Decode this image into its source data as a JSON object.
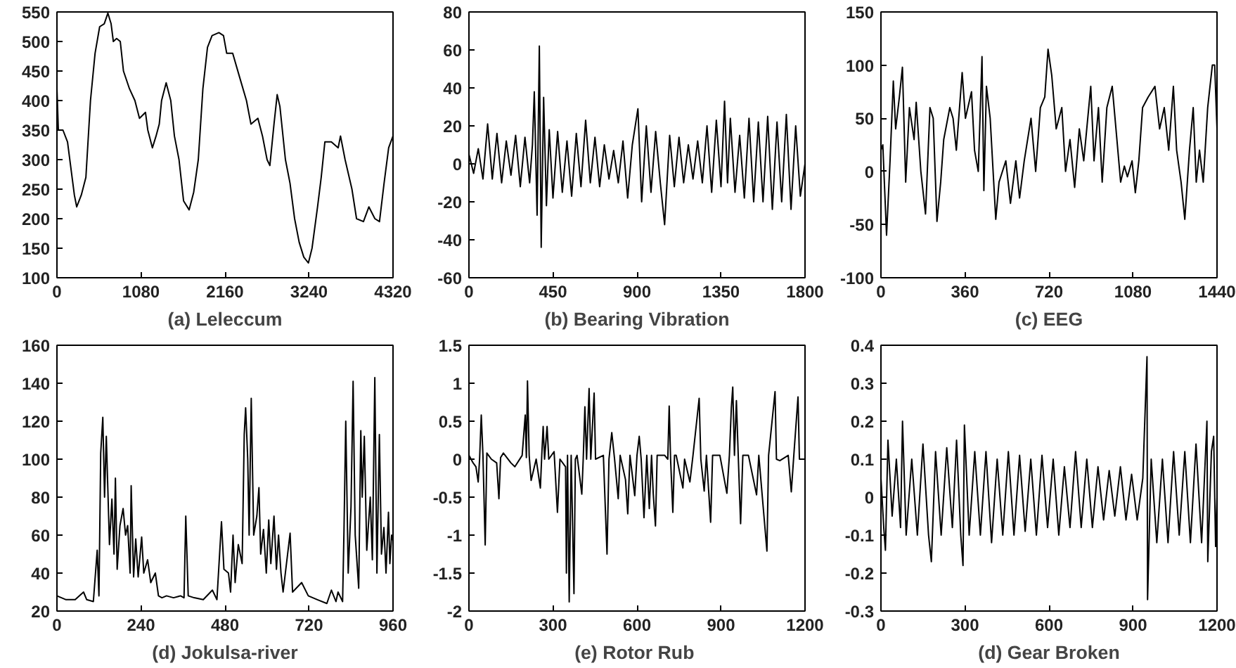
{
  "chart_data": [
    {
      "type": "line",
      "xlabel": "(a) Leleccum",
      "xlim": [
        0,
        4320
      ],
      "xticks": [
        0,
        1080,
        2160,
        3240,
        4320
      ],
      "ylim": [
        100,
        550
      ],
      "yticks": [
        100,
        150,
        200,
        250,
        300,
        350,
        400,
        450,
        500,
        550
      ],
      "series": [
        {
          "color": "#000000",
          "x": [
            0,
            18,
            77,
            136,
            224,
            254,
            313,
            372,
            431,
            490,
            549,
            608,
            655,
            696,
            725,
            767,
            814,
            855,
            932,
            1002,
            1061,
            1138,
            1168,
            1227,
            1274,
            1315,
            1345,
            1404,
            1463,
            1510,
            1569,
            1628,
            1699,
            1758,
            1817,
            1876,
            1935,
            1994,
            2082,
            2141,
            2182,
            2259,
            2347,
            2436,
            2494,
            2583,
            2642,
            2701,
            2737,
            2790,
            2831,
            2866,
            2937,
            2996,
            3055,
            3114,
            3173,
            3232,
            3279,
            3350,
            3397,
            3444,
            3527,
            3615,
            3645,
            3704,
            3792,
            3851,
            3940,
            4010,
            4087,
            4146,
            4205,
            4264,
            4320
          ],
          "values": [
            420,
            350,
            350,
            330,
            240,
            220,
            240,
            270,
            400,
            480,
            525,
            530,
            548,
            530,
            500,
            505,
            500,
            450,
            420,
            400,
            370,
            380,
            350,
            320,
            340,
            360,
            400,
            430,
            400,
            340,
            300,
            230,
            215,
            245,
            300,
            420,
            490,
            510,
            515,
            510,
            480,
            480,
            440,
            400,
            360,
            370,
            340,
            300,
            290,
            360,
            410,
            390,
            300,
            260,
            200,
            160,
            135,
            125,
            150,
            220,
            270,
            330,
            330,
            320,
            340,
            300,
            250,
            200,
            195,
            220,
            200,
            195,
            260,
            320,
            340
          ]
        }
      ]
    },
    {
      "type": "line",
      "xlabel": "(b) Bearing Vibration",
      "xlim": [
        0,
        1800
      ],
      "xticks": [
        0,
        450,
        900,
        1350,
        1800
      ],
      "ylim": [
        -60,
        80
      ],
      "yticks": [
        -60,
        -40,
        -20,
        0,
        20,
        40,
        60,
        80
      ],
      "series": [
        {
          "color": "#000000",
          "x": [
            0,
            25,
            50,
            75,
            100,
            125,
            150,
            175,
            200,
            225,
            250,
            275,
            300,
            325,
            340,
            350,
            365,
            377,
            387,
            400,
            415,
            430,
            450,
            475,
            500,
            525,
            550,
            575,
            600,
            625,
            650,
            675,
            700,
            725,
            750,
            775,
            800,
            825,
            850,
            875,
            905,
            925,
            950,
            975,
            1000,
            1025,
            1048,
            1075,
            1100,
            1125,
            1150,
            1175,
            1200,
            1225,
            1250,
            1275,
            1300,
            1325,
            1350,
            1369,
            1385,
            1400,
            1425,
            1450,
            1475,
            1500,
            1525,
            1550,
            1575,
            1600,
            1625,
            1650,
            1675,
            1700,
            1725,
            1750,
            1775,
            1800
          ],
          "values": [
            5,
            -5,
            8,
            -8,
            21,
            -8,
            16,
            -10,
            12,
            -6,
            15,
            -12,
            14,
            -10,
            10,
            38,
            -27,
            62,
            -44,
            35,
            -22,
            18,
            -18,
            17,
            -15,
            12,
            -17,
            16,
            -12,
            23,
            -10,
            14,
            -12,
            10,
            -8,
            7,
            -10,
            12,
            -18,
            10,
            29,
            -20,
            20,
            -15,
            17,
            -10,
            -32,
            15,
            -12,
            14,
            -10,
            10,
            -8,
            12,
            -10,
            20,
            -15,
            23,
            -12,
            33,
            -10,
            24,
            -15,
            15,
            -18,
            24,
            -20,
            22,
            -20,
            25,
            -24,
            22,
            -20,
            26,
            -24,
            20,
            -17,
            0
          ]
        }
      ]
    },
    {
      "type": "line",
      "xlabel": "(c) EEG",
      "xlim": [
        0,
        1440
      ],
      "xticks": [
        0,
        360,
        720,
        1080,
        1440
      ],
      "ylim": [
        -100,
        150
      ],
      "yticks": [
        -100,
        -50,
        0,
        50,
        100,
        150
      ],
      "series": [
        {
          "color": "#000000",
          "x": [
            0,
            8,
            24,
            39,
            53,
            63,
            79,
            92,
            106,
            122,
            142,
            151,
            171,
            191,
            210,
            224,
            240,
            256,
            269,
            295,
            309,
            323,
            348,
            362,
            388,
            401,
            417,
            433,
            441,
            452,
            468,
            492,
            506,
            535,
            555,
            578,
            594,
            614,
            643,
            663,
            683,
            702,
            716,
            732,
            751,
            775,
            791,
            810,
            830,
            850,
            869,
            899,
            913,
            932,
            948,
            968,
            991,
            1011,
            1027,
            1043,
            1056,
            1076,
            1090,
            1105,
            1121,
            1145,
            1174,
            1194,
            1214,
            1233,
            1253,
            1267,
            1286,
            1302,
            1322,
            1338,
            1351,
            1365,
            1381,
            1400,
            1420,
            1430,
            1440
          ],
          "values": [
            20,
            25,
            -60,
            10,
            85,
            40,
            70,
            98,
            -10,
            60,
            30,
            65,
            0,
            -40,
            60,
            50,
            -47,
            -10,
            30,
            60,
            50,
            20,
            93,
            50,
            75,
            20,
            0,
            108,
            -18,
            80,
            50,
            -45,
            -10,
            10,
            -30,
            10,
            -25,
            10,
            50,
            0,
            60,
            70,
            115,
            90,
            40,
            60,
            0,
            30,
            -15,
            40,
            10,
            80,
            10,
            60,
            -10,
            60,
            80,
            30,
            -10,
            5,
            -5,
            10,
            -20,
            10,
            60,
            70,
            80,
            40,
            60,
            20,
            80,
            20,
            -10,
            -45,
            20,
            60,
            -10,
            20,
            -10,
            60,
            100,
            100,
            40
          ]
        }
      ]
    },
    {
      "type": "line",
      "xlabel": "(d) Jokulsa-river",
      "xlim": [
        0,
        960
      ],
      "xticks": [
        0,
        240,
        480,
        720,
        960
      ],
      "ylim": [
        20,
        160
      ],
      "yticks": [
        20,
        40,
        60,
        80,
        100,
        120,
        140,
        160
      ],
      "series": [
        {
          "color": "#000000",
          "x": [
            0,
            13,
            26,
            52,
            76,
            85,
            104,
            115,
            120,
            125,
            131,
            136,
            141,
            150,
            157,
            163,
            167,
            172,
            180,
            189,
            196,
            202,
            209,
            212,
            219,
            225,
            232,
            242,
            248,
            259,
            268,
            281,
            290,
            300,
            313,
            333,
            353,
            363,
            368,
            375,
            392,
            418,
            444,
            457,
            470,
            477,
            490,
            496,
            503,
            509,
            518,
            529,
            535,
            539,
            545,
            549,
            555,
            562,
            571,
            577,
            582,
            590,
            598,
            605,
            611,
            620,
            627,
            633,
            640,
            646,
            666,
            673,
            699,
            718,
            744,
            771,
            784,
            797,
            803,
            816,
            820,
            825,
            832,
            840,
            846,
            852,
            862,
            868,
            872,
            878,
            885,
            895,
            901,
            908,
            914,
            921,
            927,
            934,
            940,
            947,
            951,
            956,
            960
          ],
          "values": [
            28,
            27,
            26,
            26,
            30,
            26,
            25,
            52,
            28,
            103,
            122,
            80,
            112,
            55,
            79,
            50,
            90,
            42,
            65,
            74,
            60,
            65,
            40,
            86,
            38,
            58,
            38,
            59,
            40,
            47,
            35,
            40,
            28,
            27,
            28,
            27,
            28,
            27,
            70,
            28,
            27,
            26,
            31,
            26,
            67,
            42,
            40,
            30,
            60,
            35,
            55,
            45,
            113,
            127,
            100,
            60,
            132,
            60,
            70,
            85,
            50,
            63,
            40,
            68,
            45,
            70,
            42,
            60,
            40,
            30,
            61,
            30,
            35,
            28,
            26,
            24,
            31,
            25,
            30,
            25,
            63,
            120,
            40,
            75,
            141,
            60,
            32,
            115,
            80,
            112,
            52,
            80,
            47,
            143,
            40,
            113,
            50,
            64,
            40,
            72,
            45,
            60,
            57
          ]
        }
      ]
    },
    {
      "type": "line",
      "xlabel": "(e) Rotor  Rub",
      "xlim": [
        0,
        1200
      ],
      "xticks": [
        0,
        300,
        600,
        900,
        1200
      ],
      "ylim": [
        -2,
        1.5
      ],
      "yticks": [
        -2,
        -1.5,
        -1,
        -0.5,
        0,
        0.5,
        1,
        1.5
      ],
      "series": [
        {
          "color": "#000000",
          "x": [
            0,
            15,
            25,
            33,
            38,
            44,
            50,
            58,
            64,
            80,
            99,
            107,
            113,
            123,
            150,
            164,
            190,
            201,
            205,
            209,
            215,
            222,
            240,
            255,
            260,
            265,
            270,
            279,
            285,
            304,
            316,
            325,
            345,
            348,
            352,
            358,
            365,
            375,
            380,
            386,
            403,
            408,
            414,
            420,
            429,
            435,
            447,
            452,
            480,
            493,
            500,
            510,
            520,
            533,
            540,
            559,
            567,
            575,
            592,
            600,
            608,
            615,
            625,
            635,
            644,
            652,
            658,
            666,
            672,
            699,
            710,
            715,
            720,
            728,
            734,
            740,
            764,
            770,
            789,
            800,
            822,
            828,
            840,
            848,
            863,
            870,
            896,
            921,
            930,
            937,
            942,
            948,
            955,
            962,
            970,
            978,
            998,
            1027,
            1035,
            1064,
            1070,
            1093,
            1098,
            1110,
            1140,
            1151,
            1160,
            1175,
            1180,
            1200
          ],
          "values": [
            0.05,
            -0.05,
            -0.1,
            -0.3,
            0,
            0.58,
            0.05,
            -1.13,
            0.08,
            0,
            -0.05,
            -0.52,
            0.02,
            0.08,
            -0.05,
            -0.1,
            0.05,
            0.58,
            0.02,
            1.03,
            0.05,
            -0.28,
            0,
            -0.38,
            0.05,
            0.43,
            0,
            0.43,
            0,
            0.1,
            -0.7,
            0,
            -0.1,
            -1.5,
            0.05,
            -1.88,
            0.05,
            -1.77,
            0,
            0.05,
            -0.46,
            0,
            0.69,
            0,
            0.93,
            0,
            0.87,
            0,
            0.05,
            -1.25,
            0,
            0.35,
            0,
            -0.52,
            0.05,
            -0.27,
            -0.72,
            0.05,
            -0.48,
            0.05,
            0.3,
            0,
            -0.77,
            0.05,
            -0.65,
            0.05,
            -0.45,
            -0.88,
            0.05,
            0.05,
            0,
            0.7,
            0,
            -0.7,
            0.05,
            0.05,
            -0.38,
            0,
            -0.3,
            0.05,
            0.8,
            0,
            -0.42,
            0.05,
            -0.83,
            0.05,
            0.05,
            -0.45,
            0.05,
            0.68,
            0.95,
            0.05,
            0.77,
            0,
            -0.85,
            0.05,
            0.05,
            -0.47,
            0.05,
            -1.21,
            0.05,
            0.89,
            0,
            -0.02,
            0.05,
            -0.43,
            0.05,
            0.82,
            0,
            0
          ]
        }
      ]
    },
    {
      "type": "line",
      "xlabel": "(d) Gear Broken",
      "xlim": [
        0,
        1200
      ],
      "xticks": [
        0,
        300,
        600,
        900,
        1200
      ],
      "ylim": [
        -0.3,
        0.4
      ],
      "yticks": [
        -0.3,
        -0.2,
        -0.1,
        0,
        0.1,
        0.2,
        0.3,
        0.4
      ],
      "series": [
        {
          "color": "#000000",
          "x": [
            0,
            10,
            16,
            25,
            40,
            55,
            70,
            77,
            90,
            110,
            130,
            150,
            170,
            180,
            195,
            215,
            235,
            255,
            270,
            285,
            293,
            298,
            315,
            335,
            355,
            375,
            395,
            415,
            435,
            455,
            475,
            495,
            515,
            535,
            555,
            575,
            595,
            615,
            635,
            655,
            675,
            695,
            715,
            735,
            755,
            775,
            795,
            815,
            835,
            855,
            875,
            895,
            915,
            935,
            950,
            952,
            965,
            985,
            1005,
            1025,
            1045,
            1065,
            1085,
            1105,
            1125,
            1145,
            1164,
            1167,
            1180,
            1188,
            1195,
            1200
          ],
          "values": [
            0.05,
            -0.08,
            -0.14,
            0.15,
            -0.05,
            0.1,
            -0.08,
            0.2,
            -0.1,
            0.1,
            -0.1,
            0.14,
            -0.1,
            -0.17,
            0.12,
            -0.1,
            0.13,
            -0.08,
            0.15,
            -0.1,
            -0.18,
            0.19,
            -0.1,
            0.12,
            -0.1,
            0.12,
            -0.12,
            0.1,
            -0.1,
            0.12,
            -0.1,
            0.11,
            -0.09,
            0.1,
            -0.1,
            0.11,
            -0.08,
            0.1,
            -0.1,
            0.08,
            -0.08,
            0.12,
            -0.08,
            0.1,
            -0.08,
            0.08,
            -0.06,
            0.07,
            -0.05,
            0.08,
            -0.06,
            0.06,
            -0.06,
            0.05,
            0.37,
            -0.27,
            0.1,
            -0.12,
            0.1,
            -0.12,
            0.12,
            -0.1,
            0.12,
            -0.12,
            0.14,
            -0.12,
            0.2,
            -0.17,
            0.12,
            0.16,
            -0.13,
            0
          ]
        }
      ]
    }
  ]
}
